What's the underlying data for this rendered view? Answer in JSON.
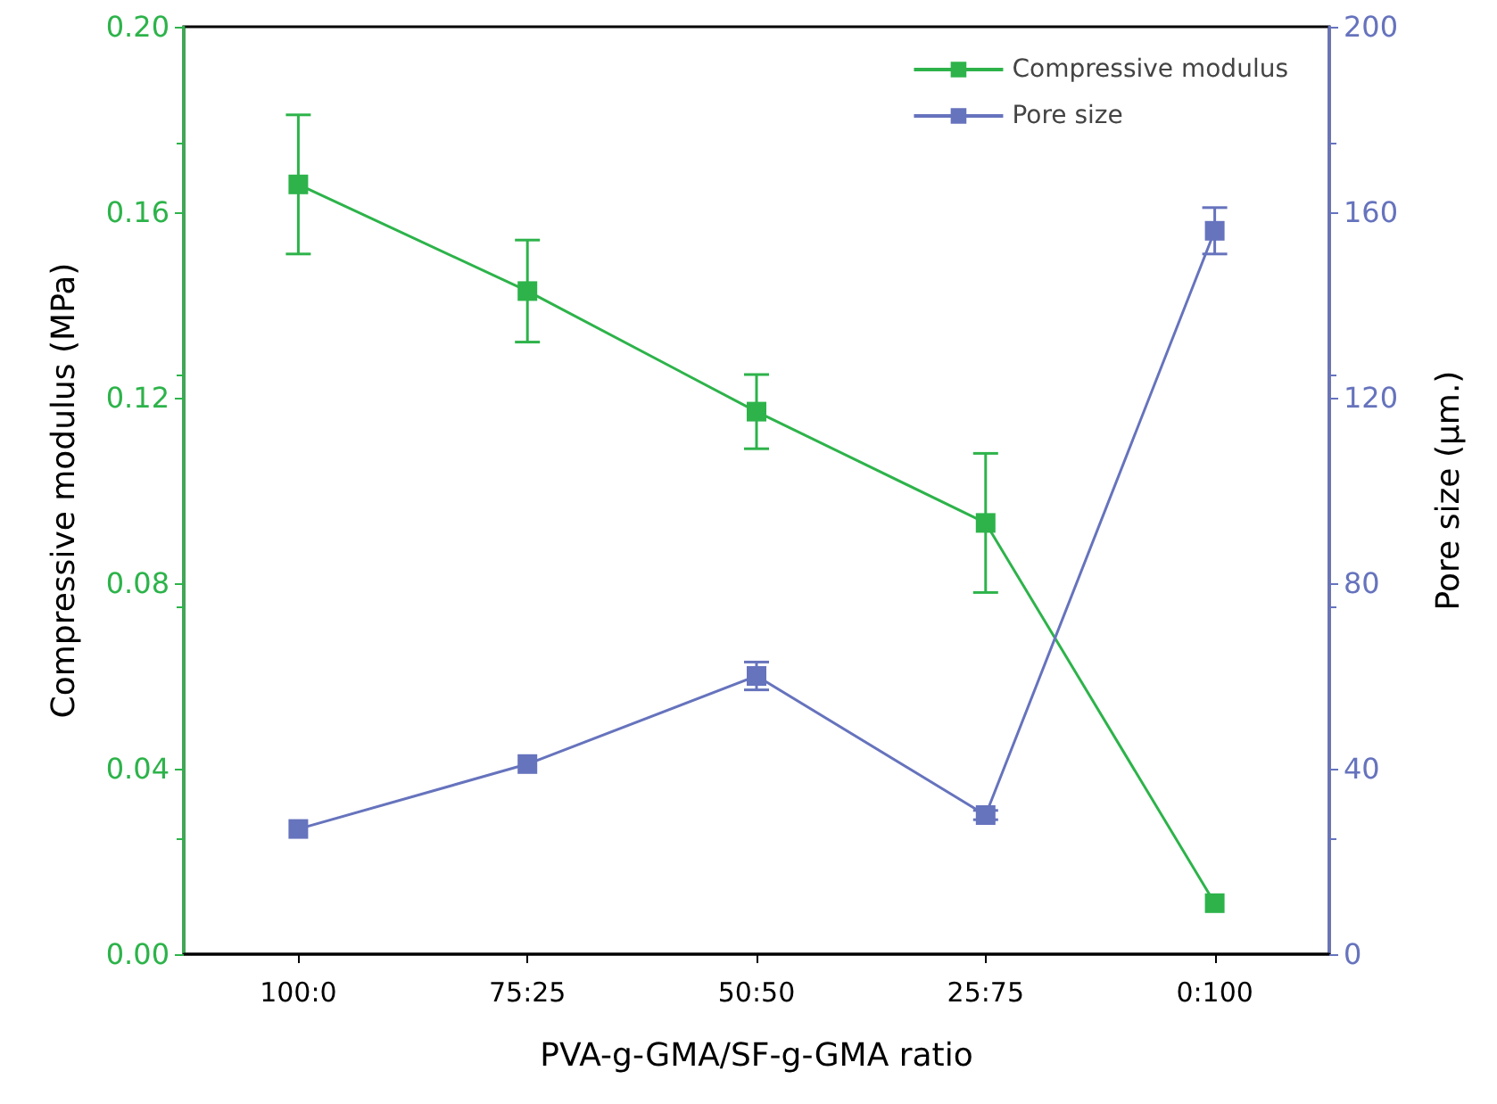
{
  "chart_data": {
    "type": "line",
    "xlabel": "PVA-g-GMA/SF-g-GMA ratio",
    "ylabel": "Compressive modulus (MPa)",
    "y2label": "Pore size (µm.)",
    "categories": [
      "100:0",
      "75:25",
      "50:50",
      "25:75",
      "0:100"
    ],
    "series": [
      {
        "name": "Compressive modulus",
        "color": "#2db34a",
        "values": [
          0.166,
          0.143,
          0.117,
          0.093,
          0.011
        ],
        "errors": [
          0.015,
          0.011,
          0.008,
          0.015,
          null
        ]
      },
      {
        "name": "Pore size",
        "color": "#6673bd",
        "axis": "y2",
        "values": [
          27,
          41,
          60,
          30,
          156
        ],
        "errors": [
          null,
          null,
          3,
          1,
          5
        ]
      }
    ],
    "ylim": [
      0,
      0.2
    ],
    "yticks": [
      {
        "value": 0,
        "label": "0.00"
      },
      {
        "value": 0.04,
        "label": "0.04"
      },
      {
        "value": 0.08,
        "label": "0.08"
      },
      {
        "value": 0.12,
        "label": "0.12"
      },
      {
        "value": 0.16,
        "label": "0.16"
      },
      {
        "value": 0.2,
        "label": "0.20"
      }
    ],
    "y2lim": [
      0,
      200
    ],
    "y2ticks": [
      0,
      40,
      80,
      120,
      160,
      200
    ],
    "marker": "square",
    "line_style": "solid",
    "grid": false,
    "legend": "top right"
  }
}
